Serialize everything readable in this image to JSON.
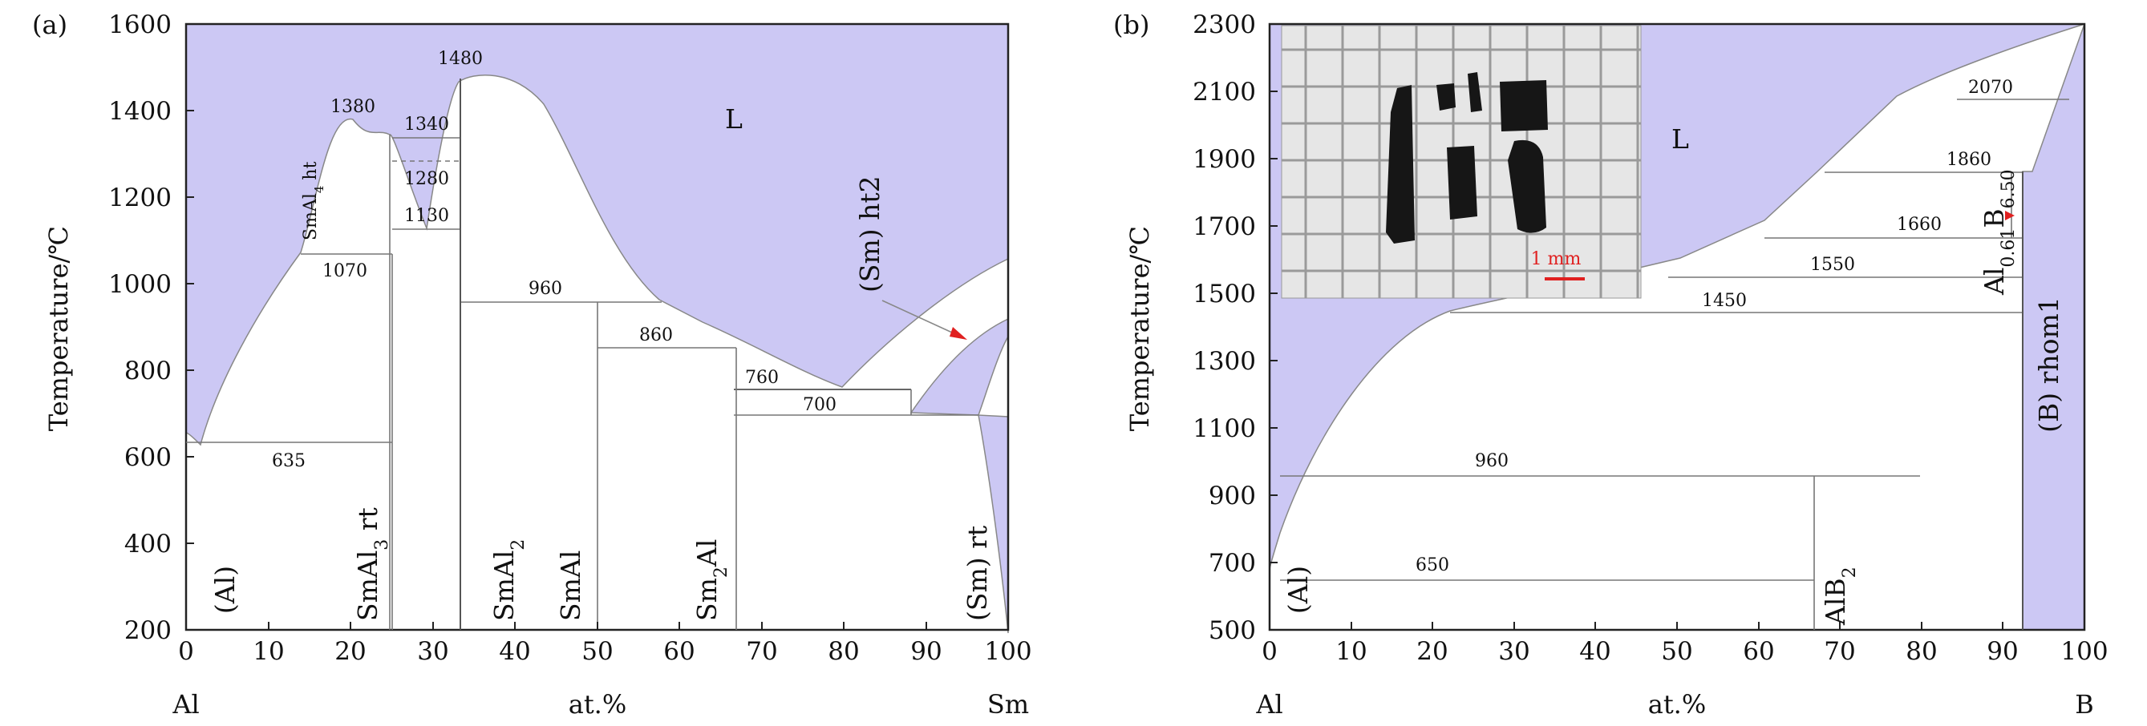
{
  "panel_a": {
    "tag": "(a)",
    "ylabel": "Temperature/℃",
    "xlabel": "at.%",
    "left_element": "Al",
    "right_element": "Sm",
    "x_ticks": [
      "0",
      "10",
      "20",
      "30",
      "40",
      "50",
      "60",
      "70",
      "80",
      "90",
      "100"
    ],
    "y_ticks": [
      "200",
      "400",
      "600",
      "800",
      "1000",
      "1200",
      "1400",
      "1600"
    ],
    "region_L": "L",
    "phase_Al": "(Al)",
    "phase_SmAl3": "SmAl",
    "phase_SmAl3_sub": "3",
    "phase_SmAl3_suf": " rt",
    "phase_SmAl4": "SmAl",
    "phase_SmAl4_sub": "4",
    "phase_SmAl4_suf": " ht",
    "phase_SmAl2": "SmAl",
    "phase_SmAl2_sub": "2",
    "phase_SmAl": "SmAl",
    "phase_Sm2Al": "Sm",
    "phase_Sm2Al_sub": "2",
    "phase_Sm2Al_suf": "Al",
    "phase_Sm_ht2": "(Sm) ht2",
    "phase_Sm_rt": "(Sm) rt",
    "temps": {
      "t1480": "1480",
      "t1380": "1380",
      "t1340": "1340",
      "t1280": "1280",
      "t1130": "1130",
      "t1070": "1070",
      "t960": "960",
      "t860": "860",
      "t760": "760",
      "t700": "700",
      "t635": "635"
    }
  },
  "panel_b": {
    "tag": "(b)",
    "ylabel": "Temperature/℃",
    "xlabel": "at.%",
    "left_element": "Al",
    "right_element": "B",
    "x_ticks": [
      "0",
      "10",
      "20",
      "30",
      "40",
      "50",
      "60",
      "70",
      "80",
      "90",
      "100"
    ],
    "y_ticks": [
      "500",
      "700",
      "900",
      "1100",
      "1300",
      "1500",
      "1700",
      "1900",
      "2100",
      "2300"
    ],
    "region_L": "L",
    "phase_Al": "(Al)",
    "phase_AlB2": "AlB",
    "phase_AlB2_sub": "2",
    "phase_B_rhom": "(B) rhom1",
    "phase_AlB": "Al",
    "phase_AlB_sub1": "0.61",
    "phase_AlB_mid": "B",
    "phase_AlB_sub2": "6.50",
    "scale_bar": "1 mm",
    "temps": {
      "t2070": "2070",
      "t1860": "1860",
      "t1660": "1660",
      "t1550": "1550",
      "t1450": "1450",
      "t960": "960",
      "t650": "650"
    }
  },
  "colors": {
    "liquid": "#ccc8f4",
    "frame": "#222222",
    "boundary": "#777777",
    "photo_bg": "#dcdcdc",
    "crystal": "#1a1a1a",
    "scale": "#e02020"
  }
}
